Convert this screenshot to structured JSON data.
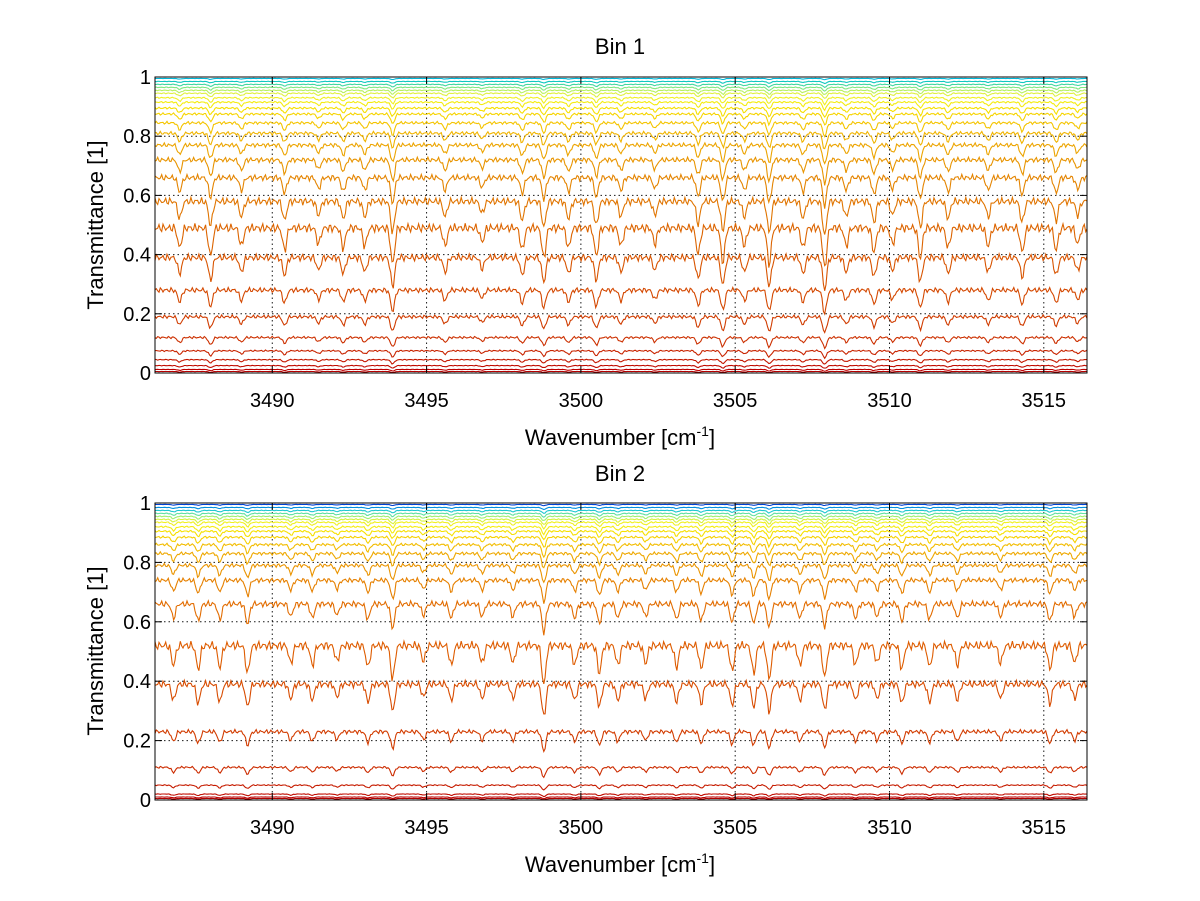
{
  "chart_data": [
    {
      "type": "line",
      "title": "Bin 1",
      "xlabel": "Wavenumber [cm",
      "xlabel_sup": "-1",
      "xlabel_end": "]",
      "ylabel": "Transmittance [1]",
      "xlim": [
        3486.2,
        3516.4
      ],
      "ylim": [
        0,
        1
      ],
      "xticks": [
        3490,
        3495,
        3500,
        3505,
        3510,
        3515
      ],
      "xtick_labels": [
        "3490",
        "3495",
        "3500",
        "3505",
        "3510",
        "3515"
      ],
      "yticks": [
        0,
        0.2,
        0.4,
        0.6,
        0.8,
        1
      ],
      "ytick_labels": [
        "0",
        "0.2",
        "0.4",
        "0.6",
        "0.8",
        "1"
      ],
      "grid": true,
      "series_baselines": [
        0.995,
        0.985,
        0.975,
        0.965,
        0.955,
        0.945,
        0.93,
        0.915,
        0.895,
        0.875,
        0.845,
        0.81,
        0.77,
        0.72,
        0.66,
        0.58,
        0.49,
        0.39,
        0.28,
        0.19,
        0.12,
        0.075,
        0.045,
        0.025,
        0.012,
        0.005
      ],
      "series_colors": [
        "#00b8d8",
        "#10c8c0",
        "#40d8a0",
        "#80e880",
        "#b8f060",
        "#e0f040",
        "#f0f020",
        "#f4ec10",
        "#f6e000",
        "#f6d400",
        "#f4c400",
        "#f0b400",
        "#eca400",
        "#e89400",
        "#e48400",
        "#e07400",
        "#dc6400",
        "#d85400",
        "#d44800",
        "#d03c00",
        "#cc3000",
        "#c82400",
        "#c41800",
        "#c00c00",
        "#bc0000",
        "#b40000"
      ],
      "absorption_lines": [
        3487.0,
        3488.0,
        3489.0,
        3490.4,
        3491.5,
        3492.3,
        3493.0,
        3493.9,
        3495.6,
        3496.8,
        3498.1,
        3498.8,
        3499.6,
        3500.5,
        3501.3,
        3502.4,
        3503.8,
        3504.6,
        3505.3,
        3506.1,
        3507.2,
        3507.9,
        3508.6,
        3509.5,
        3510.1,
        3511.0,
        3511.9,
        3513.2,
        3514.3,
        3515.4,
        3516.1
      ],
      "absorption_depths": [
        0.5,
        0.7,
        0.45,
        0.55,
        0.4,
        0.5,
        0.45,
        0.9,
        0.45,
        0.35,
        0.55,
        0.75,
        0.5,
        0.7,
        0.45,
        0.4,
        0.65,
        0.85,
        0.45,
        0.9,
        0.5,
        1.0,
        0.45,
        0.6,
        0.4,
        0.75,
        0.5,
        0.45,
        0.6,
        0.55,
        0.4
      ]
    },
    {
      "type": "line",
      "title": "Bin 2",
      "xlabel": "Wavenumber [cm",
      "xlabel_sup": "-1",
      "xlabel_end": "]",
      "ylabel": "Transmittance [1]",
      "xlim": [
        3486.2,
        3516.4
      ],
      "ylim": [
        0,
        1
      ],
      "xticks": [
        3490,
        3495,
        3500,
        3505,
        3510,
        3515
      ],
      "xtick_labels": [
        "3490",
        "3495",
        "3500",
        "3505",
        "3510",
        "3515"
      ],
      "yticks": [
        0,
        0.2,
        0.4,
        0.6,
        0.8,
        1
      ],
      "ytick_labels": [
        "0",
        "0.2",
        "0.4",
        "0.6",
        "0.8",
        "1"
      ],
      "grid": true,
      "series_baselines": [
        0.995,
        0.985,
        0.975,
        0.965,
        0.955,
        0.945,
        0.935,
        0.92,
        0.905,
        0.885,
        0.86,
        0.83,
        0.79,
        0.74,
        0.66,
        0.52,
        0.39,
        0.23,
        0.11,
        0.05,
        0.02,
        0.01,
        0.005
      ],
      "series_colors": [
        "#0040d0",
        "#0090e0",
        "#20c8d0",
        "#60e0a0",
        "#a0f070",
        "#d8f040",
        "#f0f020",
        "#f4ec10",
        "#f6e000",
        "#f6d000",
        "#f2bc00",
        "#eea800",
        "#ea9400",
        "#e68000",
        "#e26c00",
        "#de5c00",
        "#d84c00",
        "#d23c00",
        "#cc2c00",
        "#c61c00",
        "#c00c00",
        "#b80000",
        "#b00000"
      ],
      "absorption_lines": [
        3486.8,
        3487.6,
        3488.3,
        3489.2,
        3490.6,
        3491.3,
        3492.1,
        3493.1,
        3493.9,
        3494.9,
        3495.8,
        3496.8,
        3497.8,
        3498.8,
        3499.8,
        3500.6,
        3501.2,
        3502.1,
        3503.1,
        3503.9,
        3504.9,
        3505.6,
        3506.1,
        3507.1,
        3507.9,
        3508.9,
        3509.6,
        3510.4,
        3511.3,
        3512.2,
        3513.6,
        3515.2,
        3516.0
      ],
      "absorption_depths": [
        0.5,
        0.6,
        0.55,
        0.7,
        0.45,
        0.5,
        0.4,
        0.55,
        0.85,
        0.4,
        0.5,
        0.45,
        0.45,
        1.0,
        0.5,
        0.7,
        0.5,
        0.45,
        0.55,
        0.6,
        0.65,
        0.7,
        0.85,
        0.5,
        0.8,
        0.5,
        0.45,
        0.6,
        0.55,
        0.5,
        0.45,
        0.6,
        0.45
      ]
    }
  ]
}
